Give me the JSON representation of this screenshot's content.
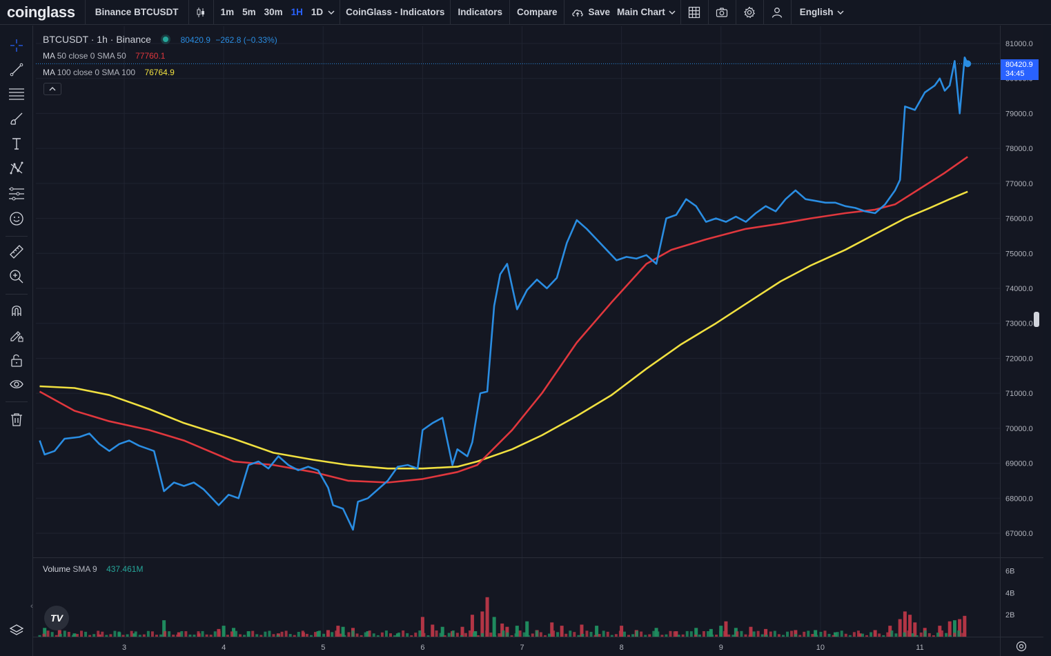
{
  "topbar": {
    "logo": "coinglass",
    "symbol": "Binance BTCUSDT",
    "timeframes": [
      "1m",
      "5m",
      "30m",
      "1H",
      "1D"
    ],
    "active_timeframe": "1H",
    "indicators_template": "CoinGlass - Indicators",
    "indicators": "Indicators",
    "compare": "Compare",
    "save": "Save",
    "layout": "Main Chart",
    "language": "English"
  },
  "legend": {
    "title": "BTCUSDT · 1h · Binance",
    "last": "80420.9",
    "change": "−262.8",
    "change_pct": "(−0.33%)",
    "ma50_label": "MA",
    "ma50_params": "50 close 0 SMA 50",
    "ma50_value": "77760.1",
    "ma100_label": "MA",
    "ma100_params": "100 close 0 SMA 100",
    "ma100_value": "76764.9",
    "volume_label": "Volume",
    "volume_params": "SMA 9",
    "volume_value": "437.461M"
  },
  "price_tag": {
    "price": "80420.9",
    "countdown": "34:45"
  },
  "tv_logo": "TV",
  "colors": {
    "background": "#141722",
    "price_line": "#2a8de2",
    "ma50": "#e0373d",
    "ma100": "#f0e040",
    "vol_up": "#1f8a5e",
    "vol_down": "#b23545",
    "grid": "#1f2330",
    "accent": "#2962ff"
  },
  "chart_data": {
    "type": "line",
    "symbol": "BTCUSDT",
    "interval": "1h",
    "exchange": "Binance",
    "x_ticks": [
      "3",
      "4",
      "5",
      "6",
      "7",
      "8",
      "9",
      "10",
      "11"
    ],
    "y_ticks": [
      "67000.0",
      "68000.0",
      "69000.0",
      "70000.0",
      "71000.0",
      "72000.0",
      "73000.0",
      "74000.0",
      "75000.0",
      "76000.0",
      "77000.0",
      "78000.0",
      "79000.0",
      "80000.0",
      "81000.0"
    ],
    "ylim": [
      66300,
      81800
    ],
    "volume_ticks": [
      "2B",
      "4B",
      "6B"
    ],
    "volume_ylim": [
      0,
      7.0
    ],
    "time_range_days": [
      2.15,
      11.45
    ],
    "series": [
      {
        "name": "BTCUSDT",
        "points": [
          [
            2.15,
            69650
          ],
          [
            2.2,
            69250
          ],
          [
            2.3,
            69350
          ],
          [
            2.4,
            69700
          ],
          [
            2.55,
            69750
          ],
          [
            2.65,
            69850
          ],
          [
            2.75,
            69550
          ],
          [
            2.85,
            69350
          ],
          [
            2.95,
            69550
          ],
          [
            3.05,
            69650
          ],
          [
            3.15,
            69500
          ],
          [
            3.3,
            69350
          ],
          [
            3.4,
            68200
          ],
          [
            3.5,
            68450
          ],
          [
            3.6,
            68350
          ],
          [
            3.7,
            68450
          ],
          [
            3.8,
            68250
          ],
          [
            3.95,
            67800
          ],
          [
            4.05,
            68100
          ],
          [
            4.15,
            68000
          ],
          [
            4.25,
            68950
          ],
          [
            4.35,
            69050
          ],
          [
            4.45,
            68850
          ],
          [
            4.55,
            69200
          ],
          [
            4.65,
            68950
          ],
          [
            4.75,
            68800
          ],
          [
            4.85,
            68900
          ],
          [
            4.95,
            68800
          ],
          [
            5.05,
            68300
          ],
          [
            5.1,
            67800
          ],
          [
            5.2,
            67700
          ],
          [
            5.3,
            67100
          ],
          [
            5.35,
            67900
          ],
          [
            5.45,
            68000
          ],
          [
            5.55,
            68250
          ],
          [
            5.65,
            68500
          ],
          [
            5.75,
            68900
          ],
          [
            5.85,
            68950
          ],
          [
            5.95,
            68850
          ],
          [
            6.0,
            69950
          ],
          [
            6.1,
            70150
          ],
          [
            6.2,
            70300
          ],
          [
            6.3,
            68950
          ],
          [
            6.35,
            69400
          ],
          [
            6.45,
            69200
          ],
          [
            6.5,
            69600
          ],
          [
            6.58,
            71000
          ],
          [
            6.65,
            71050
          ],
          [
            6.72,
            73500
          ],
          [
            6.78,
            74400
          ],
          [
            6.85,
            74700
          ],
          [
            6.95,
            73400
          ],
          [
            7.05,
            73950
          ],
          [
            7.15,
            74250
          ],
          [
            7.25,
            74000
          ],
          [
            7.35,
            74300
          ],
          [
            7.45,
            75300
          ],
          [
            7.55,
            75950
          ],
          [
            7.65,
            75700
          ],
          [
            7.75,
            75400
          ],
          [
            7.85,
            75100
          ],
          [
            7.95,
            74800
          ],
          [
            8.05,
            74900
          ],
          [
            8.15,
            74850
          ],
          [
            8.25,
            74950
          ],
          [
            8.35,
            74700
          ],
          [
            8.45,
            76000
          ],
          [
            8.55,
            76100
          ],
          [
            8.65,
            76550
          ],
          [
            8.75,
            76350
          ],
          [
            8.85,
            75900
          ],
          [
            8.95,
            76000
          ],
          [
            9.05,
            75900
          ],
          [
            9.15,
            76050
          ],
          [
            9.25,
            75900
          ],
          [
            9.35,
            76150
          ],
          [
            9.45,
            76350
          ],
          [
            9.55,
            76200
          ],
          [
            9.65,
            76550
          ],
          [
            9.75,
            76800
          ],
          [
            9.85,
            76550
          ],
          [
            9.95,
            76500
          ],
          [
            10.05,
            76450
          ],
          [
            10.15,
            76450
          ],
          [
            10.25,
            76350
          ],
          [
            10.35,
            76300
          ],
          [
            10.45,
            76200
          ],
          [
            10.55,
            76150
          ],
          [
            10.65,
            76400
          ],
          [
            10.75,
            76800
          ],
          [
            10.8,
            77100
          ],
          [
            10.85,
            79200
          ],
          [
            10.95,
            79100
          ],
          [
            11.05,
            79600
          ],
          [
            11.15,
            79800
          ],
          [
            11.2,
            80000
          ],
          [
            11.25,
            79650
          ],
          [
            11.3,
            79800
          ],
          [
            11.35,
            80500
          ],
          [
            11.4,
            79000
          ],
          [
            11.45,
            80600
          ],
          [
            11.48,
            80421
          ]
        ]
      },
      {
        "name": "MA 50 close 0 SMA 50",
        "points": [
          [
            2.15,
            71050
          ],
          [
            2.5,
            70500
          ],
          [
            2.85,
            70200
          ],
          [
            3.25,
            69950
          ],
          [
            3.6,
            69650
          ],
          [
            4.1,
            69050
          ],
          [
            4.5,
            68950
          ],
          [
            4.9,
            68750
          ],
          [
            5.25,
            68500
          ],
          [
            5.65,
            68450
          ],
          [
            6.0,
            68550
          ],
          [
            6.35,
            68750
          ],
          [
            6.55,
            68950
          ],
          [
            6.9,
            69950
          ],
          [
            7.2,
            71000
          ],
          [
            7.55,
            72450
          ],
          [
            7.9,
            73600
          ],
          [
            8.25,
            74700
          ],
          [
            8.5,
            75100
          ],
          [
            8.85,
            75400
          ],
          [
            9.25,
            75700
          ],
          [
            9.6,
            75850
          ],
          [
            9.9,
            76000
          ],
          [
            10.25,
            76150
          ],
          [
            10.55,
            76250
          ],
          [
            10.75,
            76400
          ],
          [
            11.0,
            76850
          ],
          [
            11.25,
            77300
          ],
          [
            11.48,
            77760
          ]
        ]
      },
      {
        "name": "MA 100 close 0 SMA 100",
        "points": [
          [
            2.15,
            71200
          ],
          [
            2.5,
            71150
          ],
          [
            2.85,
            70950
          ],
          [
            3.25,
            70550
          ],
          [
            3.6,
            70150
          ],
          [
            4.1,
            69700
          ],
          [
            4.5,
            69300
          ],
          [
            4.9,
            69100
          ],
          [
            5.25,
            68950
          ],
          [
            5.65,
            68850
          ],
          [
            6.0,
            68850
          ],
          [
            6.35,
            68900
          ],
          [
            6.55,
            69050
          ],
          [
            6.9,
            69400
          ],
          [
            7.2,
            69800
          ],
          [
            7.55,
            70350
          ],
          [
            7.9,
            70950
          ],
          [
            8.25,
            71700
          ],
          [
            8.6,
            72400
          ],
          [
            8.95,
            73000
          ],
          [
            9.3,
            73650
          ],
          [
            9.6,
            74200
          ],
          [
            9.9,
            74650
          ],
          [
            10.25,
            75100
          ],
          [
            10.55,
            75550
          ],
          [
            10.85,
            76000
          ],
          [
            11.1,
            76300
          ],
          [
            11.3,
            76550
          ],
          [
            11.48,
            76765
          ]
        ]
      }
    ],
    "volume_bars": [
      {
        "x": 2.2,
        "v": 0.8,
        "d": "up"
      },
      {
        "x": 2.35,
        "v": 0.6,
        "d": "down"
      },
      {
        "x": 2.5,
        "v": 0.3,
        "d": "up"
      },
      {
        "x": 2.75,
        "v": 0.2,
        "d": "down"
      },
      {
        "x": 2.95,
        "v": 0.4,
        "d": "up"
      },
      {
        "x": 3.1,
        "v": 0.3,
        "d": "up"
      },
      {
        "x": 3.4,
        "v": 1.5,
        "d": "up"
      },
      {
        "x": 3.55,
        "v": 0.4,
        "d": "down"
      },
      {
        "x": 3.75,
        "v": 0.3,
        "d": "down"
      },
      {
        "x": 3.95,
        "v": 0.7,
        "d": "down"
      },
      {
        "x": 4.0,
        "v": 1.0,
        "d": "up"
      },
      {
        "x": 4.1,
        "v": 0.8,
        "d": "up"
      },
      {
        "x": 4.25,
        "v": 0.5,
        "d": "up"
      },
      {
        "x": 4.55,
        "v": 0.3,
        "d": "down"
      },
      {
        "x": 4.8,
        "v": 0.4,
        "d": "down"
      },
      {
        "x": 4.95,
        "v": 0.5,
        "d": "up"
      },
      {
        "x": 5.05,
        "v": 0.6,
        "d": "down"
      },
      {
        "x": 5.15,
        "v": 1.0,
        "d": "down"
      },
      {
        "x": 5.2,
        "v": 0.9,
        "d": "up"
      },
      {
        "x": 5.3,
        "v": 0.8,
        "d": "down"
      },
      {
        "x": 5.45,
        "v": 0.5,
        "d": "up"
      },
      {
        "x": 5.75,
        "v": 0.3,
        "d": "up"
      },
      {
        "x": 6.0,
        "v": 1.8,
        "d": "down"
      },
      {
        "x": 6.1,
        "v": 1.1,
        "d": "down"
      },
      {
        "x": 6.2,
        "v": 0.9,
        "d": "up"
      },
      {
        "x": 6.3,
        "v": 0.5,
        "d": "down"
      },
      {
        "x": 6.4,
        "v": 0.9,
        "d": "down"
      },
      {
        "x": 6.5,
        "v": 2.0,
        "d": "down"
      },
      {
        "x": 6.53,
        "v": 0.5,
        "d": "up"
      },
      {
        "x": 6.6,
        "v": 2.3,
        "d": "down"
      },
      {
        "x": 6.65,
        "v": 3.6,
        "d": "down"
      },
      {
        "x": 6.72,
        "v": 1.8,
        "d": "up"
      },
      {
        "x": 6.8,
        "v": 1.2,
        "d": "down"
      },
      {
        "x": 6.85,
        "v": 0.9,
        "d": "down"
      },
      {
        "x": 6.95,
        "v": 1.0,
        "d": "up"
      },
      {
        "x": 7.05,
        "v": 1.4,
        "d": "up"
      },
      {
        "x": 7.15,
        "v": 0.6,
        "d": "down"
      },
      {
        "x": 7.3,
        "v": 1.3,
        "d": "down"
      },
      {
        "x": 7.4,
        "v": 1.0,
        "d": "down"
      },
      {
        "x": 7.6,
        "v": 1.1,
        "d": "down"
      },
      {
        "x": 7.75,
        "v": 1.0,
        "d": "up"
      },
      {
        "x": 8.0,
        "v": 1.0,
        "d": "down"
      },
      {
        "x": 8.15,
        "v": 0.6,
        "d": "down"
      },
      {
        "x": 8.35,
        "v": 0.8,
        "d": "up"
      },
      {
        "x": 8.55,
        "v": 0.5,
        "d": "down"
      },
      {
        "x": 8.75,
        "v": 0.8,
        "d": "up"
      },
      {
        "x": 8.9,
        "v": 0.7,
        "d": "up"
      },
      {
        "x": 9.0,
        "v": 1.0,
        "d": "up"
      },
      {
        "x": 9.05,
        "v": 1.4,
        "d": "down"
      },
      {
        "x": 9.15,
        "v": 0.8,
        "d": "up"
      },
      {
        "x": 9.3,
        "v": 0.9,
        "d": "down"
      },
      {
        "x": 9.45,
        "v": 0.7,
        "d": "down"
      },
      {
        "x": 9.75,
        "v": 0.6,
        "d": "down"
      },
      {
        "x": 9.95,
        "v": 0.6,
        "d": "up"
      },
      {
        "x": 10.15,
        "v": 0.4,
        "d": "up"
      },
      {
        "x": 10.4,
        "v": 0.3,
        "d": "down"
      },
      {
        "x": 10.55,
        "v": 0.6,
        "d": "down"
      },
      {
        "x": 10.7,
        "v": 1.0,
        "d": "down"
      },
      {
        "x": 10.8,
        "v": 1.6,
        "d": "down"
      },
      {
        "x": 10.85,
        "v": 2.3,
        "d": "down"
      },
      {
        "x": 10.9,
        "v": 2.0,
        "d": "down"
      },
      {
        "x": 10.95,
        "v": 1.3,
        "d": "down"
      },
      {
        "x": 11.05,
        "v": 0.8,
        "d": "down"
      },
      {
        "x": 11.2,
        "v": 1.0,
        "d": "down"
      },
      {
        "x": 11.3,
        "v": 1.4,
        "d": "down"
      },
      {
        "x": 11.35,
        "v": 1.5,
        "d": "up"
      },
      {
        "x": 11.4,
        "v": 1.6,
        "d": "down"
      },
      {
        "x": 11.45,
        "v": 1.9,
        "d": "down"
      }
    ]
  }
}
